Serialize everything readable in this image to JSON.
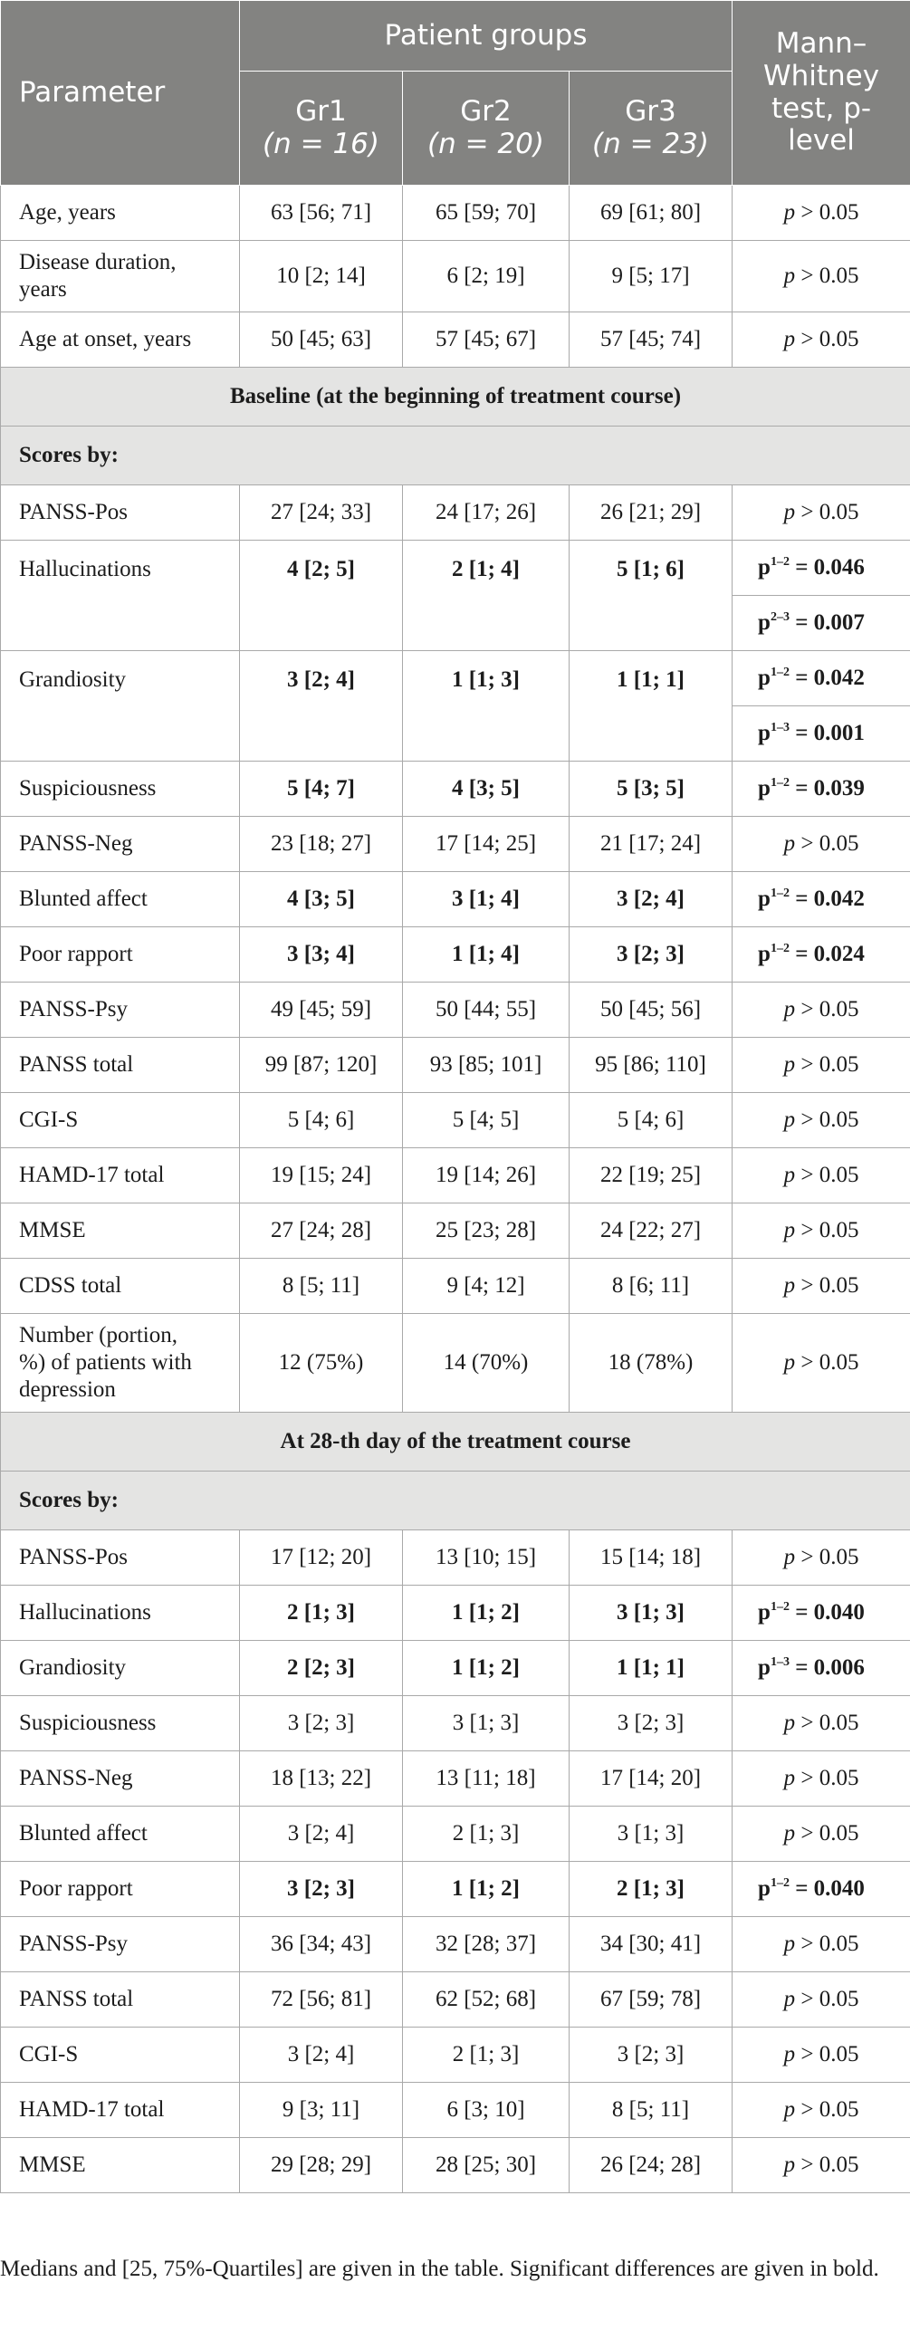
{
  "header": {
    "parameter": "Parameter",
    "patient_groups": "Patient groups",
    "test_line1": "Mann–",
    "test_line2": "Whitney",
    "test_line3": "test, p-",
    "test_line4": "level",
    "groups": [
      {
        "name": "Gr1",
        "n": "(n = 16)"
      },
      {
        "name": "Gr2",
        "n": "(n = 20)"
      },
      {
        "name": "Gr3",
        "n": "(n = 23)"
      }
    ]
  },
  "sections": {
    "baseline": "Baseline (at the beginning of treatment course)",
    "day28": "At 28-th day of the treatment course",
    "scores_by": "Scores by:"
  },
  "demographics": [
    {
      "param": "Age, years",
      "gr1": "63 [56; 71]",
      "gr2": "65 [59; 70]",
      "gr3": "69 [61; 80]",
      "p": "p > 0.05"
    },
    {
      "param_line1": "Disease duration,",
      "param_line2": "years",
      "gr1": "10 [2; 14]",
      "gr2": "6 [2; 19]",
      "gr3": "9 [5; 17]",
      "p": "p > 0.05"
    },
    {
      "param": "Age at onset, years",
      "gr1": "50 [45; 63]",
      "gr2": "57 [45; 67]",
      "gr3": "57 [45; 74]",
      "p": "p > 0.05"
    }
  ],
  "baseline_rows": [
    {
      "param": "PANSS-Pos",
      "gr1": "27 [24; 33]",
      "gr2": "24 [17; 26]",
      "gr3": "26 [21; 29]",
      "p": "p > 0.05"
    },
    {
      "param": "Hallucinations",
      "gr1": "4 [2; 5]",
      "gr2": "2 [1; 4]",
      "gr3": "5 [1; 6]",
      "p1": {
        "sup": "1–2",
        "val": " = 0.046"
      },
      "p2": {
        "sup": "2–3",
        "val": " = 0.007"
      }
    },
    {
      "param": "Grandiosity",
      "gr1": "3 [2; 4]",
      "gr2": "1 [1; 3]",
      "gr3": "1 [1; 1]",
      "p1": {
        "sup": "1–2",
        "val": " = 0.042"
      },
      "p2": {
        "sup": "1–3",
        "val": " = 0.001"
      }
    },
    {
      "param": "Suspiciousness",
      "gr1": "5 [4; 7]",
      "gr2": "4 [3; 5]",
      "gr3": "5 [3; 5]",
      "p1": {
        "sup": "1–2",
        "val": " = 0.039"
      }
    },
    {
      "param": "PANSS-Neg",
      "gr1": "23 [18; 27]",
      "gr2": "17 [14; 25]",
      "gr3": "21 [17; 24]",
      "p": "p > 0.05"
    },
    {
      "param": "Blunted affect",
      "gr1": "4 [3; 5]",
      "gr2": "3 [1; 4]",
      "gr3": "3 [2; 4]",
      "p1": {
        "sup": "1–2",
        "val": " = 0.042"
      }
    },
    {
      "param": "Poor rapport",
      "gr1": "3 [3; 4]",
      "gr2": "1 [1; 4]",
      "gr3": "3 [2; 3]",
      "p1": {
        "sup": "1–2",
        "val": " = 0.024"
      }
    },
    {
      "param": "PANSS-Psy",
      "gr1": "49 [45; 59]",
      "gr2": "50 [44; 55]",
      "gr3": "50 [45; 56]",
      "p": "p > 0.05"
    },
    {
      "param": "PANSS total",
      "gr1": "99 [87; 120]",
      "gr2": "93 [85; 101]",
      "gr3": "95 [86; 110]",
      "p": "p > 0.05"
    },
    {
      "param": "CGI-S",
      "gr1": "5 [4; 6]",
      "gr2": "5 [4; 5]",
      "gr3": "5 [4; 6]",
      "p": "p > 0.05"
    },
    {
      "param": "HAMD-17 total",
      "gr1": "19 [15; 24]",
      "gr2": "19 [14; 26]",
      "gr3": "22 [19; 25]",
      "p": "p > 0.05"
    },
    {
      "param": "MMSE",
      "gr1": "27 [24; 28]",
      "gr2": "25 [23; 28]",
      "gr3": "24 [22; 27]",
      "p": "p > 0.05"
    },
    {
      "param": "CDSS total",
      "gr1": "8 [5; 11]",
      "gr2": "9 [4; 12]",
      "gr3": "8 [6; 11]",
      "p": "p > 0.05"
    },
    {
      "param_line1": "Number (portion,",
      "param_line2": "%) of patients with",
      "param_line3": "depression",
      "gr1": "12 (75%)",
      "gr2": "14 (70%)",
      "gr3": "18 (78%)",
      "p": "p > 0.05"
    }
  ],
  "day28_rows": [
    {
      "param": "PANSS-Pos",
      "gr1": "17 [12; 20]",
      "gr2": "13 [10; 15]",
      "gr3": "15 [14; 18]",
      "p": "p > 0.05"
    },
    {
      "param": "Hallucinations",
      "gr1": "2 [1; 3]",
      "gr2": "1 [1; 2]",
      "gr3": "3 [1; 3]",
      "p1": {
        "sup": "1–2",
        "val": " = 0.040"
      }
    },
    {
      "param": "Grandiosity",
      "gr1": "2 [2; 3]",
      "gr2": "1 [1; 2]",
      "gr3": "1 [1; 1]",
      "p1": {
        "sup": "1–3",
        "val": " = 0.006"
      }
    },
    {
      "param": "Suspiciousness",
      "gr1": "3 [2; 3]",
      "gr2": "3 [1; 3]",
      "gr3": "3 [2; 3]",
      "p": "p > 0.05"
    },
    {
      "param": "PANSS-Neg",
      "gr1": "18 [13; 22]",
      "gr2": "13 [11; 18]",
      "gr3": "17 [14; 20]",
      "p": "p > 0.05"
    },
    {
      "param": "Blunted affect",
      "gr1": "3 [2; 4]",
      "gr2": "2 [1; 3]",
      "gr3": "3 [1; 3]",
      "p": "p > 0.05"
    },
    {
      "param": "Poor rapport",
      "gr1": "3 [2; 3]",
      "gr2": "1 [1; 2]",
      "gr3": "2 [1; 3]",
      "p1": {
        "sup": "1–2",
        "val": " = 0.040"
      }
    },
    {
      "param": "PANSS-Psy",
      "gr1": "36 [34; 43]",
      "gr2": "32 [28; 37]",
      "gr3": "34 [30; 41]",
      "p": "p > 0.05"
    },
    {
      "param": "PANSS total",
      "gr1": "72 [56; 81]",
      "gr2": "62 [52; 68]",
      "gr3": "67 [59; 78]",
      "p": "p > 0.05"
    },
    {
      "param": "CGI-S",
      "gr1": "3 [2; 4]",
      "gr2": "2 [1; 3]",
      "gr3": "3 [2; 3]",
      "p": "p > 0.05"
    },
    {
      "param": "HAMD-17 total",
      "gr1": "9 [3; 11]",
      "gr2": "6 [3; 10]",
      "gr3": "8 [5; 11]",
      "p": "p > 0.05"
    },
    {
      "param": "MMSE",
      "gr1": "29 [28; 29]",
      "gr2": "28 [25; 30]",
      "gr3": "26 [24; 28]",
      "p": "p > 0.05"
    }
  ],
  "p_label": "p",
  "footnote": "Medians and [25, 75%-Quartiles] are given in the table. Significant differences are given in bold."
}
